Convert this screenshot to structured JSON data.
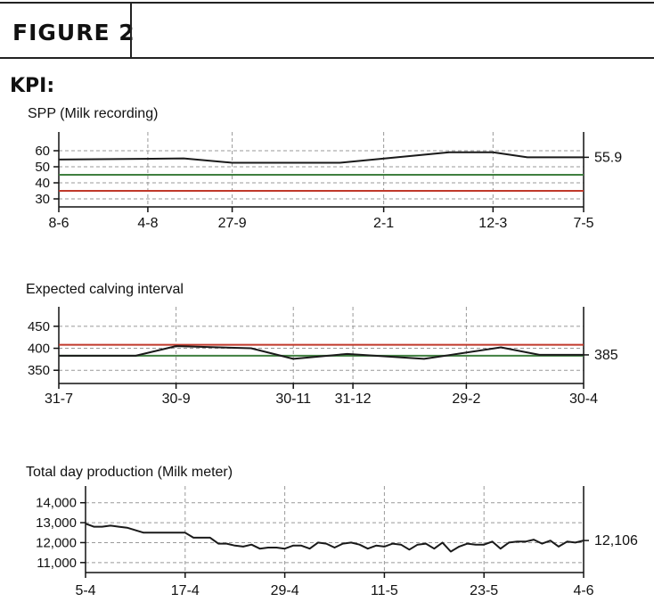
{
  "figure": {
    "label": "FIGURE 2"
  },
  "kpi_label": "KPI:",
  "colors": {
    "line": "#1a1a1a",
    "red_ref": "#c0392b",
    "green_ref": "#3f7f3f",
    "grid": "#999999"
  },
  "chart_data": [
    {
      "type": "line",
      "title": "SPP (Milk recording)",
      "y_ticks": [
        30,
        40,
        50,
        60
      ],
      "ylim": [
        25,
        65
      ],
      "x_tick_labels": [
        "8-6",
        "4-8",
        "27-9",
        "2-1",
        "12-3",
        "7-5"
      ],
      "x_ticks": [
        0,
        57,
        111,
        208,
        278,
        336
      ],
      "xlim": [
        0,
        336
      ],
      "series": [
        {
          "values": [
            [
              0,
              54.5
            ],
            [
              60,
              55
            ],
            [
              80,
              55.2
            ],
            [
              111,
              52.5
            ],
            [
              180,
              52.5
            ],
            [
              250,
              59
            ],
            [
              278,
              59
            ],
            [
              300,
              55.9
            ],
            [
              336,
              55.9
            ]
          ]
        }
      ],
      "ref_red": 35,
      "ref_green": 45,
      "current_value": "55.9",
      "grid": true
    },
    {
      "type": "line",
      "title": "Expected calving interval",
      "y_ticks": [
        350,
        400,
        450
      ],
      "ylim": [
        320,
        470
      ],
      "x_tick_labels": [
        "31-7",
        "30-9",
        "30-11",
        "31-12",
        "29-2",
        "30-4"
      ],
      "x_ticks": [
        0,
        61,
        122,
        153,
        212,
        273
      ],
      "xlim": [
        0,
        273
      ],
      "series": [
        {
          "values": [
            [
              0,
              383
            ],
            [
              40,
              383
            ],
            [
              61,
              405
            ],
            [
              100,
              400
            ],
            [
              122,
              376
            ],
            [
              150,
              387
            ],
            [
              190,
              376
            ],
            [
              230,
              402
            ],
            [
              250,
              385
            ],
            [
              273,
              385
            ]
          ]
        }
      ],
      "ref_red": 408,
      "ref_green": 383,
      "current_value": "385",
      "grid": true
    },
    {
      "type": "line",
      "title": "Total day production (Milk meter)",
      "y_ticks": [
        "11,000",
        "12,000",
        "13,000",
        "14,000"
      ],
      "ylim": [
        10500,
        14300
      ],
      "x_tick_labels": [
        "5-4",
        "17-4",
        "29-4",
        "11-5",
        "23-5",
        "4-6"
      ],
      "x_ticks": [
        0,
        12,
        24,
        36,
        48,
        60
      ],
      "xlim": [
        0,
        60
      ],
      "series": [
        {
          "values": [
            [
              0,
              12950
            ],
            [
              1,
              12800
            ],
            [
              2,
              12800
            ],
            [
              3,
              12850
            ],
            [
              4,
              12800
            ],
            [
              5,
              12750
            ],
            [
              7,
              12500
            ],
            [
              10,
              12500
            ],
            [
              12,
              12500
            ],
            [
              13,
              12250
            ],
            [
              15,
              12250
            ],
            [
              16,
              11950
            ],
            [
              17,
              11950
            ],
            [
              18,
              11850
            ],
            [
              19,
              11800
            ],
            [
              20,
              11900
            ],
            [
              21,
              11700
            ],
            [
              22,
              11750
            ],
            [
              23,
              11750
            ],
            [
              24,
              11700
            ],
            [
              25,
              11850
            ],
            [
              26,
              11850
            ],
            [
              27,
              11700
            ],
            [
              28,
              12000
            ],
            [
              29,
              11950
            ],
            [
              30,
              11750
            ],
            [
              31,
              11950
            ],
            [
              32,
              12000
            ],
            [
              33,
              11900
            ],
            [
              34,
              11700
            ],
            [
              35,
              11850
            ],
            [
              36,
              11800
            ],
            [
              37,
              11950
            ],
            [
              38,
              11900
            ],
            [
              39,
              11650
            ],
            [
              40,
              11900
            ],
            [
              41,
              11950
            ],
            [
              42,
              11700
            ],
            [
              43,
              12000
            ],
            [
              44,
              11550
            ],
            [
              45,
              11800
            ],
            [
              46,
              11950
            ],
            [
              47,
              11900
            ],
            [
              48,
              11900
            ],
            [
              49,
              12050
            ],
            [
              50,
              11700
            ],
            [
              51,
              12000
            ],
            [
              52,
              12050
            ],
            [
              53,
              12050
            ],
            [
              54,
              12150
            ],
            [
              55,
              11950
            ],
            [
              56,
              12100
            ],
            [
              57,
              11800
            ],
            [
              58,
              12050
            ],
            [
              59,
              12000
            ],
            [
              60,
              12106
            ]
          ]
        }
      ],
      "current_value": "12,106",
      "grid": true
    }
  ]
}
